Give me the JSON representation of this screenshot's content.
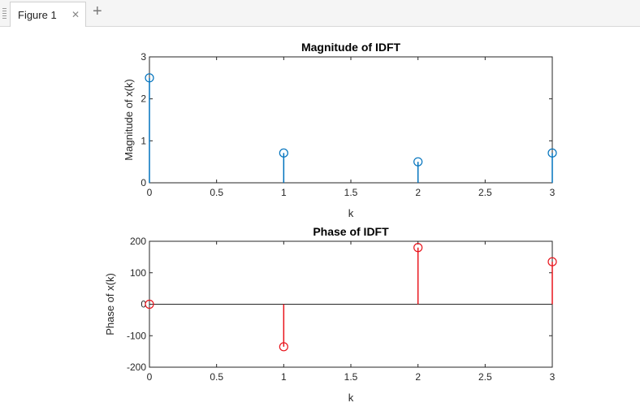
{
  "window": {
    "tab_label": "Figure 1",
    "tab_close_icon": "close-icon",
    "add_tab_icon": "plus-icon"
  },
  "colors": {
    "magnitude_stem": "#0072bd",
    "phase_stem": "#e8141c",
    "axes": "#262626",
    "tab_background": "#ffffff",
    "tabbar_background": "#f5f5f5"
  },
  "chart_data": [
    {
      "type": "stem",
      "title": "Magnitude of IDFT",
      "xlabel": "k",
      "ylabel": "Magnitude of x(k)",
      "xlim": [
        0,
        3
      ],
      "ylim": [
        0,
        3
      ],
      "xticks": [
        0,
        0.5,
        1,
        1.5,
        2,
        2.5,
        3
      ],
      "xtick_labels": [
        "0",
        "0.5",
        "1",
        "1.5",
        "2",
        "2.5",
        "3"
      ],
      "yticks": [
        0,
        1,
        2,
        3
      ],
      "ytick_labels": [
        "0",
        "1",
        "2",
        "3"
      ],
      "grid": false,
      "x": [
        0,
        1,
        2,
        3
      ],
      "values": [
        2.5,
        0.71,
        0.5,
        0.71
      ]
    },
    {
      "type": "stem",
      "title": "Phase of IDFT",
      "xlabel": "k",
      "ylabel": "Phase of x(k)",
      "xlim": [
        0,
        3
      ],
      "ylim": [
        -200,
        200
      ],
      "xticks": [
        0,
        0.5,
        1,
        1.5,
        2,
        2.5,
        3
      ],
      "xtick_labels": [
        "0",
        "0.5",
        "1",
        "1.5",
        "2",
        "2.5",
        "3"
      ],
      "yticks": [
        -200,
        -100,
        0,
        100,
        200
      ],
      "ytick_labels": [
        "-200",
        "-100",
        "0",
        "100",
        "200"
      ],
      "grid": false,
      "x": [
        0,
        1,
        2,
        3
      ],
      "values": [
        0,
        -135,
        180,
        135
      ]
    }
  ]
}
